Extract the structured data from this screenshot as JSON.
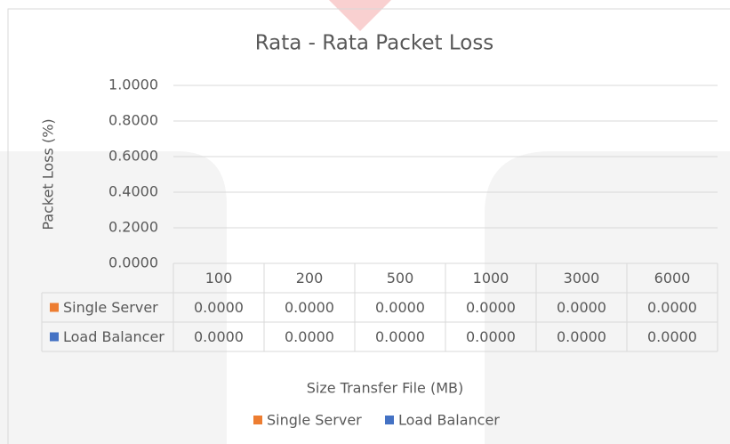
{
  "chart_data": {
    "type": "bar",
    "title": "Rata - Rata Packet Loss",
    "y_label": "Packet Loss (%)",
    "x_label": "Size Transfer File (MB)",
    "categories": [
      "100",
      "200",
      "500",
      "1000",
      "3000",
      "6000"
    ],
    "series": [
      {
        "name": "Single Server",
        "color": "#ed7d31",
        "values": [
          0,
          0,
          0,
          0,
          0,
          0
        ],
        "value_labels": [
          "0.0000",
          "0.0000",
          "0.0000",
          "0.0000",
          "0.0000",
          "0.0000"
        ]
      },
      {
        "name": "Load Balancer",
        "color": "#4472c4",
        "values": [
          0,
          0,
          0,
          0,
          0,
          0
        ],
        "value_labels": [
          "0.0000",
          "0.0000",
          "0.0000",
          "0.0000",
          "0.0000",
          "0.0000"
        ]
      }
    ],
    "ylim": [
      0,
      1
    ],
    "yticks": [
      {
        "value": 0,
        "label": "0.0000"
      },
      {
        "value": 0.2,
        "label": "0.2000"
      },
      {
        "value": 0.4,
        "label": "0.4000"
      },
      {
        "value": 0.6,
        "label": "0.6000"
      },
      {
        "value": 0.8,
        "label": "0.8000"
      },
      {
        "value": 1,
        "label": "1.0000"
      }
    ],
    "grid": true,
    "legend": "bottom"
  }
}
